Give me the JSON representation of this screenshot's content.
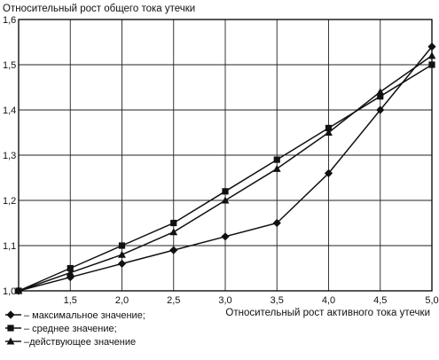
{
  "chart_data": {
    "type": "line",
    "title": "",
    "ylabel": "Относительный рост общего тока утечки",
    "xlabel": "Относительный рост активного тока утечки",
    "x": [
      1.0,
      1.5,
      2.0,
      2.5,
      3.0,
      3.5,
      4.0,
      4.5,
      5.0
    ],
    "x_tick_labels": [
      "1,0",
      "1,5",
      "2,0",
      "2,5",
      "3,0",
      "3,5",
      "4,0",
      "4,5",
      "5,0"
    ],
    "y_tick_labels": [
      "1,0",
      "1,1",
      "1,2",
      "1,3",
      "1,4",
      "1,5",
      "1,6"
    ],
    "y_ticks": [
      1.0,
      1.1,
      1.2,
      1.3,
      1.4,
      1.5,
      1.6
    ],
    "xlim": [
      1.0,
      5.0
    ],
    "ylim": [
      1.0,
      1.6
    ],
    "grid": true,
    "legend_position": "bottom-left",
    "series": [
      {
        "name": "– максимальное значение;",
        "marker": "diamond",
        "values": [
          1.0,
          1.03,
          1.06,
          1.09,
          1.12,
          1.15,
          1.26,
          1.4,
          1.54
        ]
      },
      {
        "name": "– среднее значение;",
        "marker": "square",
        "values": [
          1.0,
          1.05,
          1.1,
          1.15,
          1.22,
          1.29,
          1.36,
          1.43,
          1.5
        ]
      },
      {
        "name": "–действующее значение",
        "marker": "triangle",
        "values": [
          1.0,
          1.04,
          1.08,
          1.13,
          1.2,
          1.27,
          1.35,
          1.44,
          1.52
        ]
      }
    ]
  }
}
